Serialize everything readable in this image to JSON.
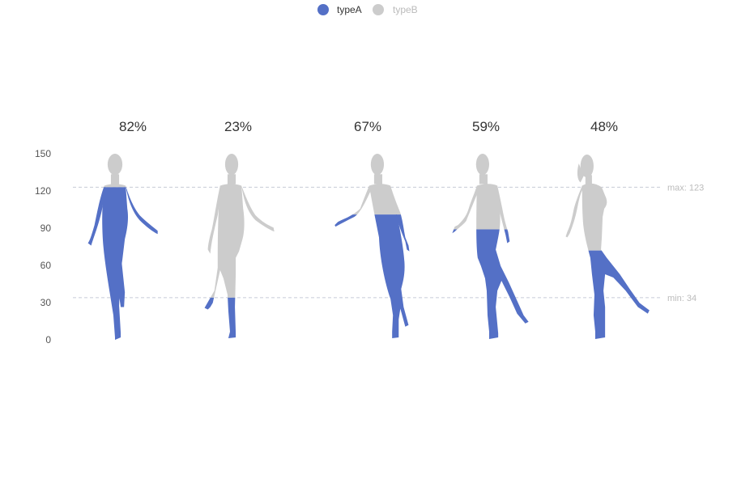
{
  "colors": {
    "typeA": "#5470c6",
    "typeB": "#cccccc",
    "ref_line": "#c8cbd6",
    "axis_text": "#555555"
  },
  "legend": {
    "items": [
      {
        "label": "typeA",
        "active": true
      },
      {
        "label": "typeB",
        "active": false
      }
    ]
  },
  "chart_data": {
    "type": "pictorial-bar",
    "y_ticks": [
      0,
      30,
      60,
      90,
      120,
      150
    ],
    "ylim": [
      0,
      150
    ],
    "figure_height": 150,
    "series": [
      {
        "name": "typeA",
        "values": [
          123,
          34,
          101,
          89,
          72
        ]
      },
      {
        "name": "typeB",
        "values": [
          150,
          150,
          150,
          150,
          150
        ]
      }
    ],
    "percent_labels": [
      "82%",
      "23%",
      "67%",
      "59%",
      "48%"
    ],
    "reference_lines": [
      {
        "label": "max: 123",
        "value": 123
      },
      {
        "label": "min: 34",
        "value": 34
      }
    ]
  }
}
